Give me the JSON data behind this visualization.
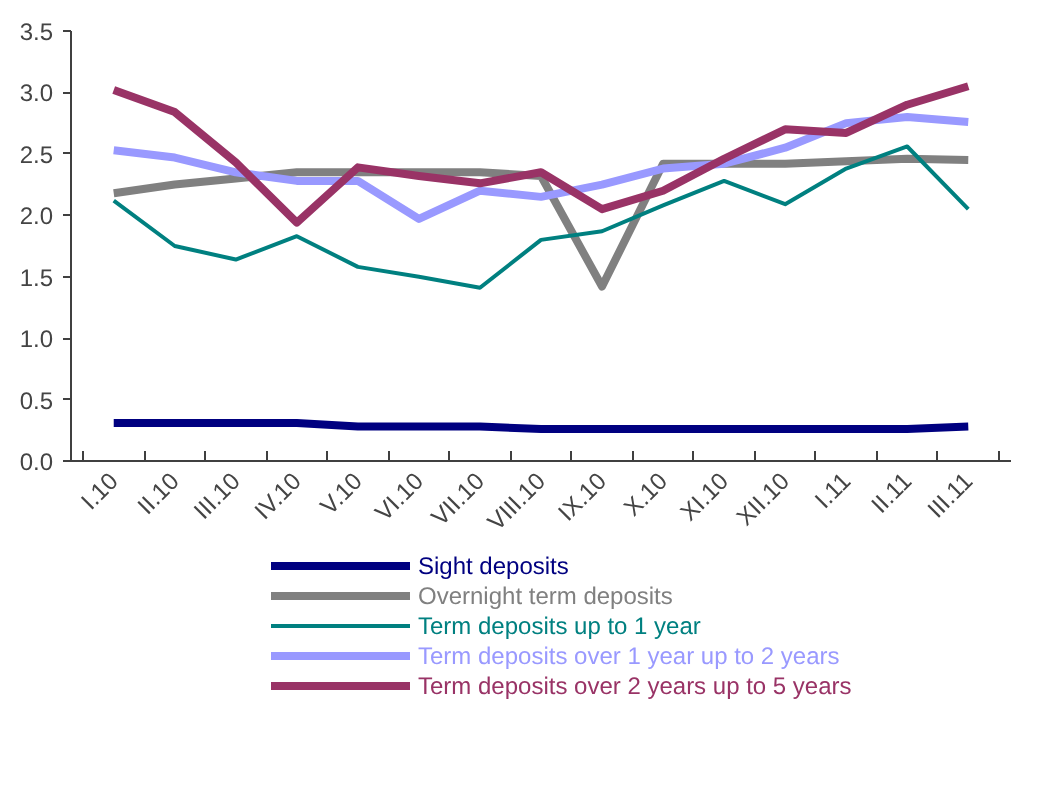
{
  "chart_data": {
    "type": "line",
    "categories": [
      "I.10",
      "II.10",
      "III.10",
      "IV.10",
      "V.10",
      "VI.10",
      "VII.10",
      "VIII.10",
      "IX.10",
      "X.10",
      "XI.10",
      "XII.10",
      "I.11",
      "II.11",
      "III.11"
    ],
    "series": [
      {
        "name": "Sight deposits",
        "color": "#000080",
        "values": [
          0.31,
          0.31,
          0.31,
          0.31,
          0.28,
          0.28,
          0.28,
          0.26,
          0.26,
          0.26,
          0.26,
          0.26,
          0.26,
          0.26,
          0.28
        ]
      },
      {
        "name": "Overnight term deposits",
        "color": "#808080",
        "values": [
          2.18,
          2.25,
          2.3,
          2.35,
          2.35,
          2.35,
          2.35,
          2.32,
          1.42,
          2.42,
          2.42,
          2.42,
          2.44,
          2.46,
          2.45
        ]
      },
      {
        "name": "Term deposits up to 1 year",
        "color": "#008080",
        "values": [
          2.12,
          1.75,
          1.64,
          1.83,
          1.58,
          1.5,
          1.41,
          1.8,
          1.87,
          2.08,
          2.28,
          2.09,
          2.38,
          2.56,
          2.05
        ]
      },
      {
        "name": "Term deposits over 1 year up to 2 years",
        "color": "#9999ff",
        "values": [
          2.53,
          2.47,
          2.35,
          2.28,
          2.28,
          1.97,
          2.2,
          2.15,
          2.25,
          2.38,
          2.42,
          2.55,
          2.75,
          2.8,
          2.76
        ]
      },
      {
        "name": "Term deposits over 2 years up to 5 years",
        "color": "#993366",
        "values": [
          3.02,
          2.84,
          2.43,
          1.94,
          2.39,
          2.32,
          2.26,
          2.35,
          2.05,
          2.2,
          2.46,
          2.7,
          2.67,
          2.9,
          3.05
        ]
      }
    ],
    "ylim": [
      0,
      3.5
    ],
    "yticks": [
      {
        "value": 0,
        "label": "0.0"
      },
      {
        "value": 0.5,
        "label": "0.5"
      },
      {
        "value": 1,
        "label": "1.0"
      },
      {
        "value": 1.5,
        "label": "1.5"
      },
      {
        "value": 2,
        "label": "2.0"
      },
      {
        "value": 2.5,
        "label": "2.5"
      },
      {
        "value": 3,
        "label": "3.0"
      },
      {
        "value": 3.5,
        "label": "3.5"
      }
    ],
    "grid": false,
    "legend": "bottom",
    "marker": "none",
    "line_style": "solid"
  }
}
